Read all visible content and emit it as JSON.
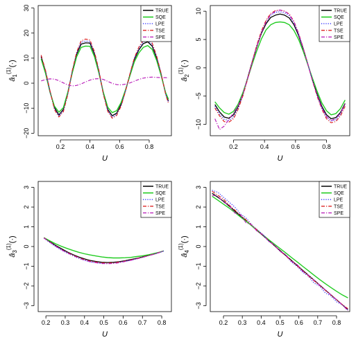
{
  "legend_entries": [
    "TRUE",
    "SQE",
    "LPE",
    "TSE",
    "SPE"
  ],
  "series_styles": [
    {
      "color": "#000000",
      "dash": "",
      "width": 1.3
    },
    {
      "color": "#22cc22",
      "dash": "",
      "width": 1.4
    },
    {
      "color": "#2a2aff",
      "dash": "1.2,2",
      "width": 1.2
    },
    {
      "color": "#dd2222",
      "dash": "5,2,1.2,2",
      "width": 1.2
    },
    {
      "color": "#bb22bb",
      "dash": "5,2,1.2,2",
      "width": 1.2
    }
  ],
  "chart_data": [
    {
      "type": "line",
      "xlabel": "U",
      "ylabel": {
        "base": "â",
        "sub": "1",
        "sup": "(1)",
        "arg": "(·)"
      },
      "xlim": [
        0.05,
        0.95
      ],
      "ylim": [
        -21,
        31
      ],
      "xticks": [
        0.2,
        0.4,
        0.6,
        0.8
      ],
      "xtick_labels": [
        "0.2",
        "0.4",
        "0.6",
        "0.8"
      ],
      "yticks": [
        -20,
        -10,
        0,
        10,
        20,
        30
      ],
      "ytick_labels": [
        "−20",
        "−10",
        "0",
        "10",
        "20",
        "30"
      ],
      "legend_position": "top-right",
      "x": [
        0.07,
        0.1,
        0.13,
        0.16,
        0.19,
        0.22,
        0.25,
        0.28,
        0.31,
        0.34,
        0.37,
        0.4,
        0.43,
        0.46,
        0.49,
        0.52,
        0.55,
        0.58,
        0.61,
        0.64,
        0.67,
        0.7,
        0.73,
        0.76,
        0.79,
        0.82,
        0.85,
        0.88,
        0.91,
        0.93
      ],
      "series": [
        {
          "name": "TRUE",
          "values": [
            10.6,
            4.4,
            -3.3,
            -9.8,
            -12.7,
            -10.5,
            -3.9,
            4.5,
            11.6,
            15.6,
            16.1,
            16.0,
            11.6,
            4.5,
            -3.9,
            -10.5,
            -13.0,
            -12.0,
            -8.5,
            -2.9,
            3.4,
            9.5,
            13.3,
            15.8,
            16.5,
            14.8,
            10.1,
            3.6,
            -3.9,
            -7.2
          ]
        },
        {
          "name": "SQE",
          "values": [
            9.7,
            3.8,
            -3.7,
            -9.2,
            -11.6,
            -9.8,
            -3.6,
            4.0,
            10.6,
            14.3,
            14.8,
            14.7,
            10.6,
            4.0,
            -3.6,
            -9.6,
            -11.8,
            -11.0,
            -7.7,
            -2.6,
            3.0,
            8.6,
            12.1,
            14.3,
            15.0,
            13.5,
            9.1,
            3.1,
            -3.6,
            -6.4
          ]
        },
        {
          "name": "LPE",
          "values": [
            10.9,
            4.7,
            -3.6,
            -10.2,
            -13.1,
            -11.0,
            -4.2,
            4.7,
            12.0,
            16.3,
            16.8,
            16.6,
            12.1,
            4.8,
            -4.2,
            -10.9,
            -13.6,
            -12.5,
            -8.9,
            -3.0,
            3.6,
            9.9,
            13.9,
            16.5,
            17.2,
            15.4,
            10.5,
            3.8,
            -4.1,
            -7.6
          ]
        },
        {
          "name": "TSE",
          "values": [
            11.2,
            5.0,
            -3.2,
            -10.6,
            -13.5,
            -11.4,
            -4.6,
            5.0,
            12.4,
            16.9,
            17.6,
            17.2,
            12.6,
            5.2,
            -4.5,
            -11.3,
            -14.0,
            -12.9,
            -9.2,
            -3.2,
            3.8,
            10.2,
            14.4,
            17.1,
            17.9,
            16.0,
            10.9,
            4.0,
            -4.3,
            -8.0
          ]
        },
        {
          "name": "SPE",
          "values": [
            0.9,
            1.4,
            1.7,
            1.6,
            1.0,
            0.1,
            -0.7,
            -1.1,
            -0.9,
            -0.3,
            0.5,
            1.2,
            1.7,
            1.8,
            1.5,
            0.7,
            -0.1,
            -0.6,
            -0.7,
            -0.4,
            0.1,
            0.8,
            1.5,
            2.0,
            2.3,
            2.4,
            2.3,
            2.2,
            2.2,
            2.1
          ]
        }
      ]
    },
    {
      "type": "line",
      "xlabel": "U",
      "ylabel": {
        "base": "â",
        "sub": "2",
        "sup": "(1)",
        "arg": "(·)"
      },
      "xlim": [
        0.05,
        0.95
      ],
      "ylim": [
        -12,
        11
      ],
      "xticks": [
        0.2,
        0.4,
        0.6,
        0.8
      ],
      "xtick_labels": [
        "0.2",
        "0.4",
        "0.6",
        "0.8"
      ],
      "yticks": [
        -10,
        -5,
        0,
        5,
        10
      ],
      "ytick_labels": [
        "−10",
        "−5",
        "0",
        "5",
        "10"
      ],
      "legend_position": "top-right",
      "x": [
        0.08,
        0.11,
        0.14,
        0.17,
        0.2,
        0.23,
        0.26,
        0.29,
        0.32,
        0.35,
        0.38,
        0.41,
        0.44,
        0.47,
        0.5,
        0.53,
        0.56,
        0.59,
        0.62,
        0.65,
        0.68,
        0.71,
        0.74,
        0.77,
        0.8,
        0.83,
        0.86,
        0.89,
        0.92
      ],
      "series": [
        {
          "name": "TRUE",
          "values": [
            -6.5,
            -7.8,
            -8.7,
            -8.9,
            -8.3,
            -6.8,
            -4.6,
            -1.9,
            1.0,
            3.7,
            6.1,
            7.8,
            8.9,
            9.3,
            9.5,
            9.3,
            8.8,
            7.6,
            5.7,
            3.3,
            0.6,
            -2.2,
            -4.7,
            -6.8,
            -8.3,
            -9.0,
            -8.8,
            -7.9,
            -6.3
          ]
        },
        {
          "name": "SQE",
          "values": [
            -6.0,
            -7.1,
            -7.9,
            -8.2,
            -7.7,
            -6.4,
            -4.4,
            -2.0,
            0.6,
            3.0,
            5.1,
            6.7,
            7.6,
            8.0,
            8.1,
            8.0,
            7.6,
            6.6,
            5.0,
            2.9,
            0.5,
            -1.9,
            -4.2,
            -6.2,
            -7.6,
            -8.3,
            -8.1,
            -7.2,
            -5.7
          ]
        },
        {
          "name": "LPE",
          "values": [
            -6.8,
            -8.2,
            -9.1,
            -9.3,
            -8.7,
            -7.1,
            -4.8,
            -2.0,
            1.0,
            3.8,
            6.3,
            8.1,
            9.3,
            9.8,
            9.9,
            9.7,
            9.2,
            7.9,
            5.9,
            3.4,
            0.6,
            -2.3,
            -4.9,
            -7.1,
            -8.7,
            -9.4,
            -9.2,
            -8.2,
            -6.6
          ]
        },
        {
          "name": "TSE",
          "values": [
            -7.1,
            -8.5,
            -9.5,
            -9.6,
            -9.0,
            -7.3,
            -5.0,
            -2.1,
            1.0,
            4.0,
            6.5,
            8.4,
            9.6,
            10.1,
            10.2,
            10.0,
            9.5,
            8.2,
            6.1,
            3.5,
            0.6,
            -2.4,
            -5.1,
            -7.3,
            -9.0,
            -9.7,
            -9.5,
            -8.5,
            -6.8
          ]
        },
        {
          "name": "SPE",
          "values": [
            -9.0,
            -10.9,
            -10.3,
            -9.1,
            -8.0,
            -6.7,
            -4.7,
            -2.0,
            0.9,
            3.7,
            6.2,
            8.1,
            9.4,
            10.0,
            10.2,
            10.0,
            9.4,
            8.1,
            6.0,
            3.4,
            0.6,
            -2.3,
            -4.9,
            -7.1,
            -8.6,
            -9.3,
            -9.0,
            -8.0,
            -6.4
          ]
        }
      ]
    },
    {
      "type": "line",
      "xlabel": "U",
      "ylabel": {
        "base": "â",
        "sub": "3",
        "sup": "(1)",
        "arg": "(·)"
      },
      "xlim": [
        0.16,
        0.85
      ],
      "ylim": [
        -3.3,
        3.3
      ],
      "xticks": [
        0.2,
        0.3,
        0.4,
        0.5,
        0.6,
        0.7,
        0.8
      ],
      "xtick_labels": [
        "0.2",
        "0.3",
        "0.4",
        "0.5",
        "0.6",
        "0.7",
        "0.8"
      ],
      "yticks": [
        -3,
        -2,
        -1,
        0,
        1,
        2,
        3
      ],
      "ytick_labels": [
        "−3",
        "−2",
        "−1",
        "0",
        "1",
        "2",
        "3"
      ],
      "legend_position": "top-right",
      "x": [
        0.19,
        0.22,
        0.25,
        0.28,
        0.31,
        0.34,
        0.37,
        0.4,
        0.43,
        0.46,
        0.49,
        0.52,
        0.55,
        0.58,
        0.61,
        0.64,
        0.67,
        0.7,
        0.73,
        0.76,
        0.79,
        0.81
      ],
      "series": [
        {
          "name": "TRUE",
          "values": [
            0.45,
            0.25,
            0.06,
            -0.11,
            -0.27,
            -0.41,
            -0.53,
            -0.63,
            -0.71,
            -0.76,
            -0.8,
            -0.81,
            -0.8,
            -0.77,
            -0.72,
            -0.66,
            -0.6,
            -0.53,
            -0.45,
            -0.38,
            -0.29,
            -0.22
          ]
        },
        {
          "name": "SQE",
          "values": [
            0.45,
            0.29,
            0.14,
            0.01,
            -0.1,
            -0.2,
            -0.29,
            -0.37,
            -0.43,
            -0.48,
            -0.53,
            -0.56,
            -0.58,
            -0.58,
            -0.57,
            -0.55,
            -0.51,
            -0.47,
            -0.42,
            -0.35,
            -0.28,
            -0.22
          ]
        },
        {
          "name": "LPE",
          "values": [
            0.42,
            0.2,
            0.0,
            -0.18,
            -0.33,
            -0.47,
            -0.6,
            -0.7,
            -0.78,
            -0.82,
            -0.86,
            -0.86,
            -0.85,
            -0.8,
            -0.75,
            -0.7,
            -0.62,
            -0.55,
            -0.47,
            -0.38,
            -0.3,
            -0.23
          ]
        },
        {
          "name": "TSE",
          "values": [
            0.44,
            0.23,
            0.03,
            -0.15,
            -0.3,
            -0.44,
            -0.56,
            -0.66,
            -0.74,
            -0.79,
            -0.83,
            -0.84,
            -0.83,
            -0.79,
            -0.74,
            -0.68,
            -0.61,
            -0.54,
            -0.46,
            -0.38,
            -0.29,
            -0.22
          ]
        },
        {
          "name": "SPE",
          "values": [
            0.43,
            0.22,
            0.02,
            -0.16,
            -0.32,
            -0.46,
            -0.58,
            -0.69,
            -0.77,
            -0.82,
            -0.86,
            -0.87,
            -0.86,
            -0.82,
            -0.76,
            -0.7,
            -0.63,
            -0.55,
            -0.47,
            -0.39,
            -0.3,
            -0.22
          ]
        }
      ]
    },
    {
      "type": "line",
      "xlabel": "U",
      "ylabel": {
        "base": "â",
        "sub": "4",
        "sup": "(1)",
        "arg": "(·)"
      },
      "xlim": [
        0.13,
        0.87
      ],
      "ylim": [
        -3.3,
        3.3
      ],
      "xticks": [
        0.2,
        0.3,
        0.4,
        0.5,
        0.6,
        0.7,
        0.8
      ],
      "xtick_labels": [
        "0.2",
        "0.3",
        "0.4",
        "0.5",
        "0.6",
        "0.7",
        "0.8"
      ],
      "yticks": [
        -3,
        -2,
        -1,
        0,
        1,
        2,
        3
      ],
      "ytick_labels": [
        "−3",
        "−2",
        "−1",
        "0",
        "1",
        "2",
        "3"
      ],
      "legend_position": "top-right",
      "x": [
        0.14,
        0.17,
        0.2,
        0.23,
        0.26,
        0.29,
        0.32,
        0.35,
        0.38,
        0.41,
        0.44,
        0.47,
        0.5,
        0.53,
        0.56,
        0.59,
        0.62,
        0.65,
        0.68,
        0.71,
        0.74,
        0.77,
        0.8,
        0.83,
        0.86
      ],
      "series": [
        {
          "name": "TRUE",
          "values": [
            2.7,
            2.5,
            2.3,
            2.05,
            1.8,
            1.55,
            1.3,
            1.05,
            0.8,
            0.55,
            0.3,
            0.05,
            -0.2,
            -0.45,
            -0.7,
            -0.95,
            -1.2,
            -1.45,
            -1.7,
            -1.95,
            -2.2,
            -2.45,
            -2.7,
            -2.95,
            -3.2
          ]
        },
        {
          "name": "SQE",
          "values": [
            2.55,
            2.35,
            2.15,
            1.95,
            1.73,
            1.5,
            1.28,
            1.05,
            0.82,
            0.58,
            0.35,
            0.12,
            -0.1,
            -0.32,
            -0.55,
            -0.77,
            -1.0,
            -1.22,
            -1.45,
            -1.67,
            -1.88,
            -2.08,
            -2.27,
            -2.45,
            -2.6
          ]
        },
        {
          "name": "LPE",
          "values": [
            2.85,
            2.75,
            2.5,
            2.25,
            2.0,
            1.65,
            1.45,
            1.1,
            0.85,
            0.6,
            0.28,
            0.05,
            -0.25,
            -0.45,
            -0.78,
            -1.0,
            -1.3,
            -1.5,
            -1.85,
            -2.0,
            -2.35,
            -2.5,
            -2.8,
            -2.95,
            -3.2
          ]
        },
        {
          "name": "TSE",
          "values": [
            2.8,
            2.6,
            2.4,
            2.1,
            1.85,
            1.6,
            1.35,
            1.08,
            0.82,
            0.57,
            0.3,
            0.04,
            -0.22,
            -0.47,
            -0.72,
            -0.97,
            -1.23,
            -1.48,
            -1.73,
            -1.97,
            -2.22,
            -2.46,
            -2.7,
            -2.94,
            -3.15
          ]
        },
        {
          "name": "SPE",
          "values": [
            2.6,
            2.55,
            2.25,
            2.1,
            1.7,
            1.6,
            1.2,
            1.1,
            0.75,
            0.6,
            0.25,
            0.1,
            -0.25,
            -0.4,
            -0.75,
            -0.9,
            -1.25,
            -1.45,
            -1.7,
            -1.95,
            -2.2,
            -2.45,
            -2.7,
            -2.95,
            -3.25
          ]
        }
      ]
    }
  ]
}
